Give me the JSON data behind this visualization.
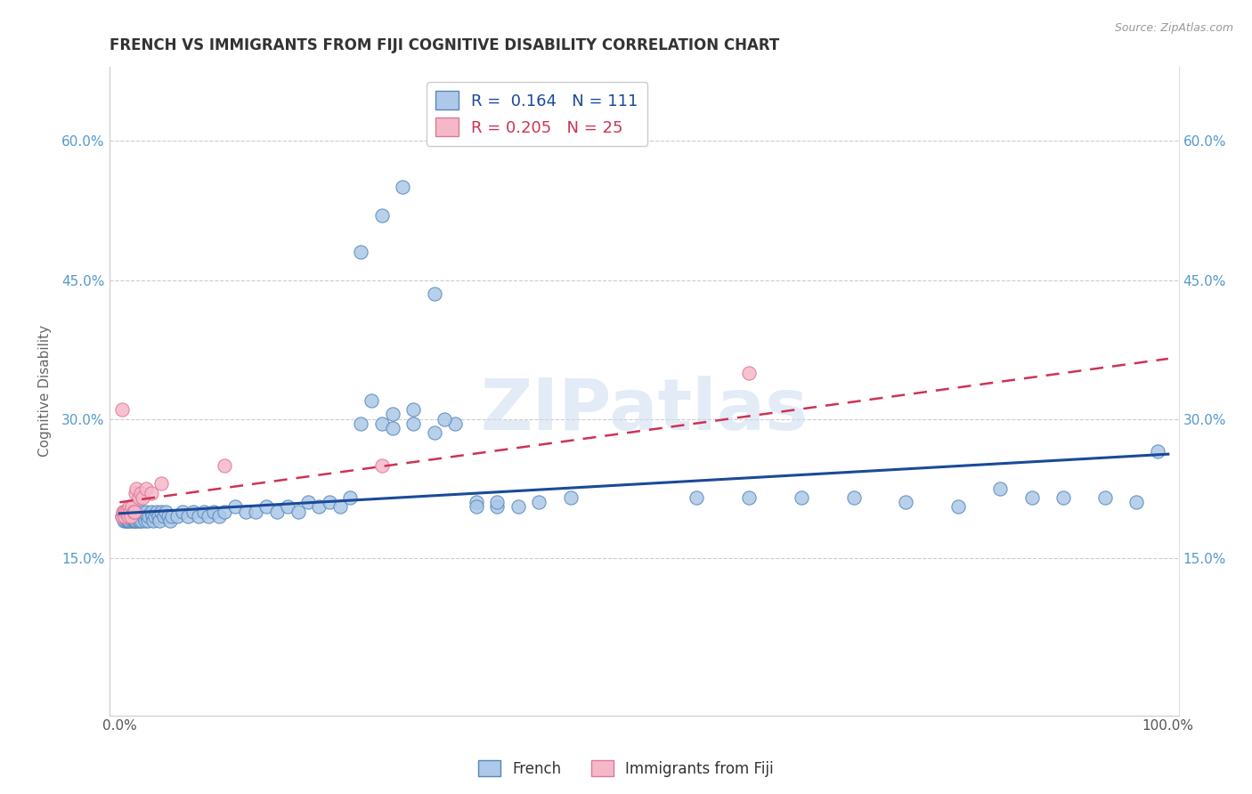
{
  "title": "FRENCH VS IMMIGRANTS FROM FIJI COGNITIVE DISABILITY CORRELATION CHART",
  "source": "Source: ZipAtlas.com",
  "ylabel": "Cognitive Disability",
  "xlim": [
    -0.01,
    1.01
  ],
  "ylim": [
    -0.02,
    0.68
  ],
  "ytick_vals": [
    0.15,
    0.3,
    0.45,
    0.6
  ],
  "ytick_labels": [
    "15.0%",
    "30.0%",
    "45.0%",
    "60.0%"
  ],
  "xtick_vals": [
    0.0,
    1.0
  ],
  "xtick_labels": [
    "0.0%",
    "100.0%"
  ],
  "french_R": 0.164,
  "french_N": 111,
  "fiji_R": 0.205,
  "fiji_N": 25,
  "french_color": "#adc8e8",
  "french_edge": "#5588bb",
  "fiji_color": "#f5b8c8",
  "fiji_edge": "#dd7799",
  "french_line_color": "#1a4a99",
  "fiji_line_color": "#cc3355",
  "watermark": "ZIPatlas",
  "background_color": "#ffffff",
  "french_x": [
    0.002,
    0.003,
    0.004,
    0.004,
    0.005,
    0.005,
    0.006,
    0.006,
    0.007,
    0.007,
    0.007,
    0.008,
    0.008,
    0.008,
    0.009,
    0.009,
    0.01,
    0.01,
    0.011,
    0.011,
    0.012,
    0.012,
    0.013,
    0.013,
    0.014,
    0.014,
    0.015,
    0.015,
    0.016,
    0.016,
    0.017,
    0.018,
    0.018,
    0.019,
    0.02,
    0.021,
    0.022,
    0.023,
    0.024,
    0.025,
    0.026,
    0.027,
    0.028,
    0.03,
    0.031,
    0.032,
    0.034,
    0.035,
    0.037,
    0.038,
    0.04,
    0.042,
    0.044,
    0.046,
    0.048,
    0.05,
    0.055,
    0.06,
    0.065,
    0.07,
    0.075,
    0.08,
    0.085,
    0.09,
    0.095,
    0.1,
    0.11,
    0.12,
    0.13,
    0.14,
    0.15,
    0.16,
    0.17,
    0.18,
    0.19,
    0.2,
    0.21,
    0.22,
    0.23,
    0.24,
    0.25,
    0.26,
    0.28,
    0.3,
    0.32,
    0.34,
    0.36,
    0.38,
    0.4,
    0.43,
    0.26,
    0.28,
    0.31,
    0.34,
    0.36,
    0.55,
    0.6,
    0.65,
    0.7,
    0.75,
    0.8,
    0.84,
    0.87,
    0.9,
    0.94,
    0.97,
    0.99,
    0.23,
    0.25,
    0.27,
    0.3
  ],
  "french_y": [
    0.195,
    0.195,
    0.2,
    0.19,
    0.2,
    0.195,
    0.195,
    0.19,
    0.2,
    0.195,
    0.19,
    0.2,
    0.195,
    0.19,
    0.195,
    0.19,
    0.2,
    0.195,
    0.2,
    0.195,
    0.195,
    0.19,
    0.195,
    0.19,
    0.195,
    0.19,
    0.2,
    0.19,
    0.195,
    0.19,
    0.195,
    0.19,
    0.195,
    0.19,
    0.195,
    0.19,
    0.2,
    0.195,
    0.19,
    0.2,
    0.195,
    0.19,
    0.195,
    0.2,
    0.195,
    0.19,
    0.195,
    0.2,
    0.195,
    0.19,
    0.2,
    0.195,
    0.2,
    0.195,
    0.19,
    0.195,
    0.195,
    0.2,
    0.195,
    0.2,
    0.195,
    0.2,
    0.195,
    0.2,
    0.195,
    0.2,
    0.205,
    0.2,
    0.2,
    0.205,
    0.2,
    0.205,
    0.2,
    0.21,
    0.205,
    0.21,
    0.205,
    0.215,
    0.295,
    0.32,
    0.295,
    0.305,
    0.31,
    0.285,
    0.295,
    0.21,
    0.205,
    0.205,
    0.21,
    0.215,
    0.29,
    0.295,
    0.3,
    0.205,
    0.21,
    0.215,
    0.215,
    0.215,
    0.215,
    0.21,
    0.205,
    0.225,
    0.215,
    0.215,
    0.215,
    0.21,
    0.265,
    0.48,
    0.52,
    0.55,
    0.435
  ],
  "fiji_x": [
    0.002,
    0.003,
    0.004,
    0.005,
    0.006,
    0.007,
    0.008,
    0.009,
    0.01,
    0.011,
    0.012,
    0.013,
    0.014,
    0.015,
    0.016,
    0.018,
    0.02,
    0.022,
    0.025,
    0.03,
    0.04,
    0.1,
    0.25,
    0.6,
    0.002
  ],
  "fiji_y": [
    0.195,
    0.2,
    0.2,
    0.195,
    0.2,
    0.2,
    0.195,
    0.205,
    0.2,
    0.195,
    0.205,
    0.2,
    0.2,
    0.22,
    0.225,
    0.215,
    0.22,
    0.215,
    0.225,
    0.22,
    0.23,
    0.25,
    0.25,
    0.35,
    0.31
  ]
}
